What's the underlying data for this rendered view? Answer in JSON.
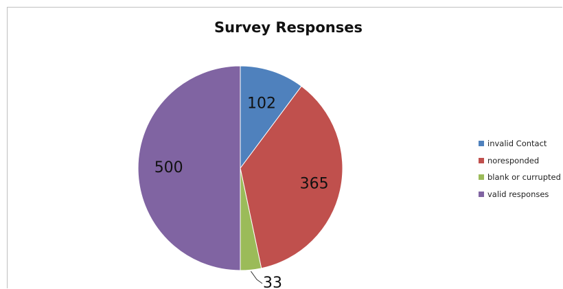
{
  "chart_data": {
    "type": "pie",
    "title": "Survey Responses",
    "categories": [
      "invalid Contact",
      "noresponded",
      "blank or currupted",
      "valid responses"
    ],
    "values": [
      102,
      365,
      33,
      500
    ],
    "data_labels": [
      "102",
      "365",
      "33",
      "500"
    ],
    "colors": [
      "#4f81bd",
      "#c0504d",
      "#9bbb59",
      "#8064a2"
    ],
    "legend_position": "right"
  }
}
